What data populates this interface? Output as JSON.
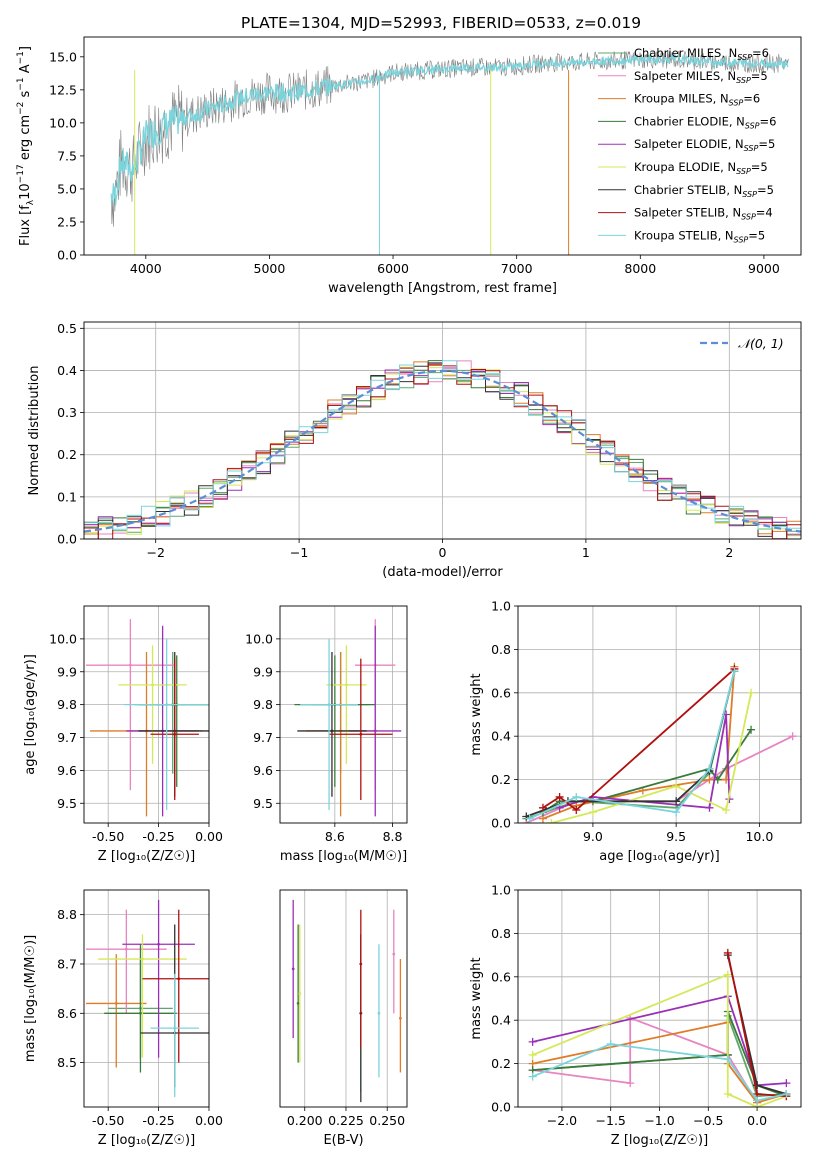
{
  "title": "PLATE=1304, MJD=52993, FIBERID=0533, z=0.019",
  "series": [
    {
      "name": "Chabrier MILES, N_SSP=6",
      "label_main": "Chabrier MILES, N",
      "label_sub": "SSP",
      "label_tail": "=6",
      "color": "#5da86a"
    },
    {
      "name": "Salpeter MILES, N_SSP=5",
      "label_main": "Salpeter MILES, N",
      "label_sub": "SSP",
      "label_tail": "=5",
      "color": "#e884c0"
    },
    {
      "name": "Kroupa MILES, N_SSP=6",
      "label_main": "Kroupa MILES, N",
      "label_sub": "SSP",
      "label_tail": "=6",
      "color": "#e07b28"
    },
    {
      "name": "Chabrier ELODIE, N_SSP=6",
      "label_main": "Chabrier ELODIE, N",
      "label_sub": "SSP",
      "label_tail": "=6",
      "color": "#3a7a3a"
    },
    {
      "name": "Salpeter ELODIE, N_SSP=5",
      "label_main": "Salpeter ELODIE, N",
      "label_sub": "SSP",
      "label_tail": "=5",
      "color": "#9b30b8"
    },
    {
      "name": "Kroupa ELODIE, N_SSP=5",
      "label_main": "Kroupa ELODIE, N",
      "label_sub": "SSP",
      "label_tail": "=5",
      "color": "#d5e85a"
    },
    {
      "name": "Chabrier STELIB, N_SSP=5",
      "label_main": "Chabrier STELIB, N",
      "label_sub": "SSP",
      "label_tail": "=5",
      "color": "#333333"
    },
    {
      "name": "Salpeter STELIB, N_SSP=4",
      "label_main": "Salpeter STELIB, N",
      "label_sub": "SSP",
      "label_tail": "=4",
      "color": "#b01010"
    },
    {
      "name": "Kroupa STELIB, N_SSP=5",
      "label_main": "Kroupa STELIB, N",
      "label_sub": "SSP",
      "label_tail": "=5",
      "color": "#7ad4dc"
    }
  ],
  "chart_data": [
    {
      "panel": "spectrum",
      "type": "line",
      "xlabel": "wavelength [Angstrom, rest frame]",
      "ylabel_parts": [
        "Flux [f",
        "λ",
        "10",
        "−17",
        " erg cm",
        "−2",
        " s",
        "−1",
        " A",
        "−1",
        "]"
      ],
      "xlim": [
        3500,
        9300
      ],
      "ylim": [
        0,
        16.5
      ],
      "xticks": [
        4000,
        5000,
        6000,
        7000,
        8000,
        9000
      ],
      "yticks": [
        0.0,
        2.5,
        5.0,
        7.5,
        10.0,
        12.5,
        15.0
      ],
      "data_color": "#808080",
      "x": [
        3750,
        3800,
        3900,
        4000,
        4200,
        4500,
        4800,
        5000,
        5200,
        5500,
        5800,
        6000,
        6300,
        6600,
        6900,
        7200,
        7500,
        7800,
        8000,
        8300,
        8600,
        8900,
        9200
      ],
      "y": [
        4.5,
        7.0,
        6.5,
        9.0,
        10.0,
        11.0,
        12.0,
        12.3,
        12.3,
        12.8,
        13.2,
        13.8,
        14.0,
        14.2,
        14.2,
        14.5,
        14.6,
        14.7,
        14.8,
        14.8,
        14.6,
        14.5,
        14.5
      ]
    },
    {
      "panel": "residuals",
      "type": "line",
      "xlabel": "(data-model)/error",
      "ylabel": "Normed distribution",
      "xlim": [
        -2.5,
        2.5
      ],
      "ylim": [
        0,
        0.515
      ],
      "xticks": [
        -2,
        -1,
        0,
        1,
        2
      ],
      "xtick_labels": [
        "−2",
        "−1",
        "0",
        "1",
        "2"
      ],
      "yticks": [
        0.0,
        0.1,
        0.2,
        0.3,
        0.4,
        0.5
      ],
      "grid": true,
      "legend": "top-right",
      "reference_label": "𝒩(0, 1)",
      "reference_color": "#5b8ed6",
      "hist_bin_width": 0.1
    },
    {
      "panel": "age-vs-Z",
      "type": "scatter",
      "xlabel": "Z [log₁₀(Z/Z☉)]",
      "ylabel": "age  [log₁₀(age/yr)]",
      "xlim": [
        -0.62,
        0.0
      ],
      "ylim": [
        9.44,
        10.1
      ],
      "xticks": [
        -0.5,
        -0.25,
        0.0
      ],
      "yticks": [
        9.5,
        9.6,
        9.7,
        9.8,
        9.9,
        10.0
      ],
      "x": [
        -0.18,
        -0.39,
        -0.31,
        -0.16,
        -0.23,
        -0.28,
        -0.17,
        -0.17,
        -0.21
      ],
      "y": [
        9.8,
        9.92,
        9.72,
        9.8,
        9.72,
        9.86,
        9.72,
        9.71,
        9.8
      ],
      "xerr": [
        0.19,
        0.22,
        0.28,
        0.19,
        0.18,
        0.17,
        0.18,
        0.12,
        0.21
      ],
      "yerr_up": [
        0.16,
        0.14,
        0.24,
        0.15,
        0.32,
        0.12,
        0.24,
        0.23,
        0.2
      ],
      "yerr_down": [
        0.21,
        0.38,
        0.26,
        0.25,
        0.26,
        0.24,
        0.2,
        0.2,
        0.32
      ]
    },
    {
      "panel": "age-vs-mass",
      "type": "scatter",
      "xlabel": "mass [log₁₀(M/M☉)]",
      "ylabel": "",
      "xlim": [
        8.41,
        8.85
      ],
      "ylim": [
        9.44,
        10.1
      ],
      "xticks": [
        8.6,
        8.8
      ],
      "yticks": [
        9.5,
        9.6,
        9.7,
        9.8,
        9.9,
        10.0
      ],
      "x": [
        8.62,
        8.74,
        8.62,
        8.6,
        8.74,
        8.64,
        8.59,
        8.69,
        8.58
      ],
      "y": [
        9.8,
        9.92,
        9.72,
        9.8,
        9.72,
        9.86,
        9.72,
        9.71,
        9.8
      ],
      "xerr": [
        0.1,
        0.07,
        0.12,
        0.14,
        0.09,
        0.07,
        0.12,
        0.11,
        0.1
      ],
      "yerr_up": [
        0.16,
        0.14,
        0.24,
        0.15,
        0.32,
        0.12,
        0.24,
        0.23,
        0.2
      ],
      "yerr_down": [
        0.21,
        0.38,
        0.26,
        0.25,
        0.26,
        0.24,
        0.2,
        0.2,
        0.32
      ]
    },
    {
      "panel": "weight-vs-age",
      "type": "line",
      "xlabel": "age  [log₁₀(age/yr)]",
      "ylabel": "mass weight",
      "xlim": [
        8.55,
        10.25
      ],
      "ylim": [
        0.0,
        1.0
      ],
      "xticks": [
        9.0,
        9.5,
        10.0
      ],
      "yticks": [
        0.0,
        0.2,
        0.4,
        0.6,
        0.8,
        1.0
      ],
      "grid": true,
      "series": [
        {
          "x": [
            8.6,
            8.9,
            9.5,
            9.7,
            9.85
          ],
          "y": [
            0.02,
            0.1,
            0.07,
            0.23,
            0.7
          ]
        },
        {
          "x": [
            8.6,
            8.9,
            9.5,
            9.8,
            10.2
          ],
          "y": [
            0.0,
            0.1,
            0.1,
            0.25,
            0.4
          ]
        },
        {
          "x": [
            8.7,
            8.9,
            9.3,
            9.7,
            9.8,
            9.85
          ],
          "y": [
            0.02,
            0.08,
            0.15,
            0.2,
            0.2,
            0.72
          ]
        },
        {
          "x": [
            8.7,
            8.8,
            9.0,
            9.7,
            9.75,
            9.95
          ],
          "y": [
            0.05,
            0.1,
            0.1,
            0.25,
            0.2,
            0.43
          ]
        },
        {
          "x": [
            8.8,
            9.0,
            9.7,
            9.8,
            9.82
          ],
          "y": [
            0.07,
            0.12,
            0.07,
            0.5,
            0.11
          ]
        },
        {
          "x": [
            8.75,
            9.0,
            9.5,
            9.8,
            9.95
          ],
          "y": [
            0.0,
            0.05,
            0.17,
            0.06,
            0.6
          ]
        },
        {
          "x": [
            8.6,
            8.85,
            9.5,
            9.7,
            9.85
          ],
          "y": [
            0.03,
            0.1,
            0.1,
            0.24,
            0.7
          ]
        },
        {
          "x": [
            8.7,
            8.8,
            8.9,
            9.85
          ],
          "y": [
            0.07,
            0.12,
            0.06,
            0.71
          ]
        },
        {
          "x": [
            8.62,
            8.9,
            9.5,
            9.7,
            9.85
          ],
          "y": [
            0.02,
            0.12,
            0.05,
            0.25,
            0.7
          ]
        }
      ]
    },
    {
      "panel": "mass-vs-Z",
      "type": "scatter",
      "xlabel": "Z [log₁₀(Z/Z☉)]",
      "ylabel": "mass [log₁₀(M/M☉)]",
      "xlim": [
        -0.62,
        0.0
      ],
      "ylim": [
        8.41,
        8.85
      ],
      "xticks": [
        -0.5,
        -0.25,
        0.0
      ],
      "yticks": [
        8.5,
        8.6,
        8.7,
        8.8
      ],
      "x": [
        -0.34,
        -0.41,
        -0.46,
        -0.34,
        -0.25,
        -0.33,
        -0.17,
        -0.15,
        -0.17
      ],
      "y": [
        8.61,
        8.73,
        8.62,
        8.6,
        8.74,
        8.71,
        8.56,
        8.67,
        8.57
      ],
      "xerr": [
        0.16,
        0.2,
        0.15,
        0.18,
        0.18,
        0.22,
        0.17,
        0.18,
        0.12
      ],
      "yerr_up": [
        0.1,
        0.08,
        0.1,
        0.14,
        0.09,
        0.05,
        0.22,
        0.14,
        0.11
      ],
      "yerr_down": [
        0.1,
        0.13,
        0.13,
        0.12,
        0.23,
        0.2,
        0.11,
        0.17,
        0.14
      ]
    },
    {
      "panel": "mass-vs-EBV",
      "type": "scatter",
      "xlabel": "E(B-V)",
      "ylabel": "",
      "xlim": [
        0.185,
        0.262
      ],
      "ylim": [
        8.41,
        8.85
      ],
      "xticks": [
        0.2,
        0.225,
        0.25
      ],
      "x": [
        0.234,
        0.254,
        0.258,
        0.196,
        0.193,
        0.197,
        0.234,
        0.234,
        0.245
      ],
      "y": [
        8.6,
        8.72,
        8.59,
        8.62,
        8.69,
        8.64,
        8.6,
        8.7,
        8.6
      ],
      "yerr_up": [
        0.16,
        0.09,
        0.12,
        0.16,
        0.14,
        0.14,
        0.16,
        0.11,
        0.14
      ],
      "yerr_down": [
        0.16,
        0.12,
        0.11,
        0.12,
        0.14,
        0.14,
        0.18,
        0.17,
        0.13
      ]
    },
    {
      "panel": "weight-vs-Z",
      "type": "line",
      "xlabel": "Z [log₁₀(Z/Z☉)]",
      "ylabel": "mass weight",
      "xlim": [
        -2.45,
        0.45
      ],
      "ylim": [
        0.0,
        1.0
      ],
      "xticks": [
        -2.0,
        -1.5,
        -1.0,
        -0.5,
        0.0
      ],
      "xtick_labels": [
        "−2.0",
        "−1.5",
        "−1.0",
        "−0.5",
        "0.0"
      ],
      "yticks": [
        0.0,
        0.2,
        0.4,
        0.6,
        0.8,
        1.0
      ],
      "grid": true,
      "series": [
        {
          "x": [
            -2.3,
            -0.3,
            -0.3,
            0.0,
            0.3
          ],
          "y": [
            0.17,
            0.24,
            0.42,
            0.05,
            0.06
          ]
        },
        {
          "x": [
            -2.3,
            -1.3,
            -1.3,
            -0.3,
            0.0
          ],
          "y": [
            0.17,
            0.11,
            0.41,
            0.24,
            0.02
          ]
        },
        {
          "x": [
            -2.3,
            -0.3,
            -0.3,
            0.0,
            0.3
          ],
          "y": [
            0.2,
            0.39,
            0.2,
            0.02,
            0.06
          ]
        },
        {
          "x": [
            -2.3,
            -0.3,
            -0.3,
            0.0,
            0.3
          ],
          "y": [
            0.17,
            0.24,
            0.44,
            0.1,
            0.05
          ]
        },
        {
          "x": [
            -2.3,
            -0.3,
            0.0,
            0.3
          ],
          "y": [
            0.3,
            0.51,
            0.1,
            0.11
          ]
        },
        {
          "x": [
            -2.3,
            -0.3,
            -0.3,
            0.0,
            0.3
          ],
          "y": [
            0.24,
            0.61,
            0.06,
            0.0,
            0.05
          ]
        },
        {
          "x": [
            -0.3,
            0.0,
            0.3
          ],
          "y": [
            0.7,
            0.1,
            0.06
          ]
        },
        {
          "x": [
            -0.3,
            0.0,
            0.3
          ],
          "y": [
            0.71,
            0.06,
            0.05
          ]
        },
        {
          "x": [
            -2.3,
            -1.5,
            -0.3,
            0.0,
            0.3
          ],
          "y": [
            0.14,
            0.29,
            0.22,
            0.03,
            0.06
          ]
        }
      ]
    }
  ]
}
